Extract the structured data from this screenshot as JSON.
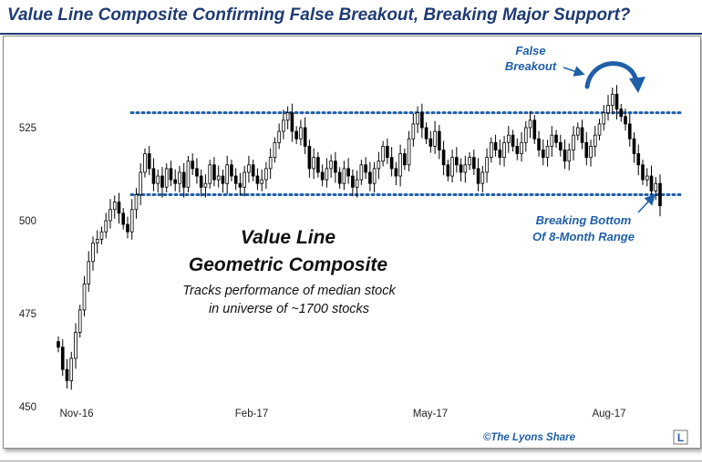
{
  "title": "Value Line Composite Confirming False Breakout, Breaking Major Support?",
  "chart_data": {
    "type": "candlestick",
    "title": "Value Line Composite Confirming False Breakout, Breaking Major Support?",
    "xlabel": "",
    "ylabel": "",
    "ylim": [
      450,
      545
    ],
    "y_ticks": [
      450,
      475,
      500,
      525
    ],
    "x_ticks": [
      "Nov-16",
      "Feb-17",
      "May-17",
      "Aug-17"
    ],
    "grid": false,
    "support_level": 507,
    "resistance_level": 529,
    "close_series": [
      466,
      460,
      457,
      463,
      470,
      476,
      483,
      489,
      494,
      495,
      497,
      500,
      503,
      505,
      502,
      499,
      497,
      503,
      507,
      513,
      518,
      514,
      510,
      512,
      509,
      514,
      511,
      510,
      513,
      509,
      516,
      514,
      512,
      509,
      510,
      515,
      511,
      512,
      510,
      515,
      512,
      510,
      509,
      513,
      515,
      512,
      510,
      511,
      514,
      517,
      521,
      524,
      527,
      529,
      524,
      522,
      525,
      520,
      514,
      517,
      513,
      511,
      514,
      516,
      513,
      510,
      514,
      512,
      509,
      511,
      515,
      513,
      510,
      514,
      516,
      520,
      517,
      514,
      512,
      518,
      515,
      522,
      526,
      529,
      525,
      522,
      520,
      524,
      519,
      515,
      512,
      517,
      515,
      513,
      515,
      517,
      514,
      510,
      513,
      517,
      521,
      519,
      517,
      521,
      523,
      520,
      518,
      521,
      525,
      527,
      522,
      519,
      517,
      520,
      523,
      521,
      519,
      516,
      519,
      523,
      525,
      521,
      517,
      520,
      523,
      526,
      529,
      531,
      534,
      530,
      528,
      526,
      522,
      518,
      515,
      511,
      512,
      508,
      510,
      504
    ],
    "annotations": {
      "false_breakout": [
        "False",
        "Breakout"
      ],
      "breaking_bottom": [
        "Breaking Bottom",
        "Of 8-Month Range"
      ],
      "headline": [
        "Value Line",
        "Geometric Composite"
      ],
      "subtext": [
        "Tracks performance of median stock",
        "in universe of ~1700 stocks"
      ]
    },
    "watermark": "©The Lyons Share",
    "watermark_logo": "L",
    "colors": {
      "up_candle": "#ffffff",
      "down_candle": "#000000",
      "annotation": "#1f5fa8",
      "level_line": "#1f5fa8",
      "title": "#1f3b73"
    }
  }
}
